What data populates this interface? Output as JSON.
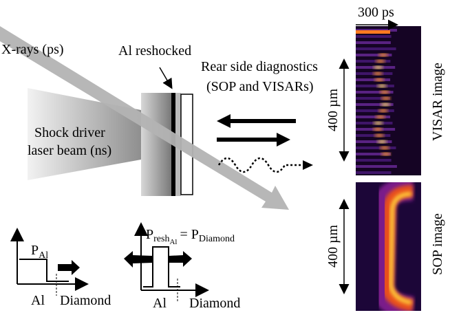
{
  "labels": {
    "time_scale": "300 ps",
    "xrays": "X-rays (ps)",
    "al_reshocked": "Al reshocked",
    "rear_line1": "Rear side diagnostics",
    "rear_line2": "(SOP and VISARs)",
    "visar_scale": "400 µm",
    "visar_image": "VISAR image",
    "driver_line1": "Shock driver",
    "driver_line2": "laser beam (ns)",
    "sop_scale": "400 µm",
    "sop_image": "SOP image"
  },
  "plot_a": {
    "p": "P",
    "p_sub": "Al",
    "x_left": "Al",
    "x_right": "Diamond"
  },
  "plot_b": {
    "p": "P",
    "p_sub": "resh",
    "p_subsub": "Al",
    "equals": "= P",
    "rhs_sub": "Diamond",
    "x_left": "Al",
    "x_right": "Diamond"
  }
}
